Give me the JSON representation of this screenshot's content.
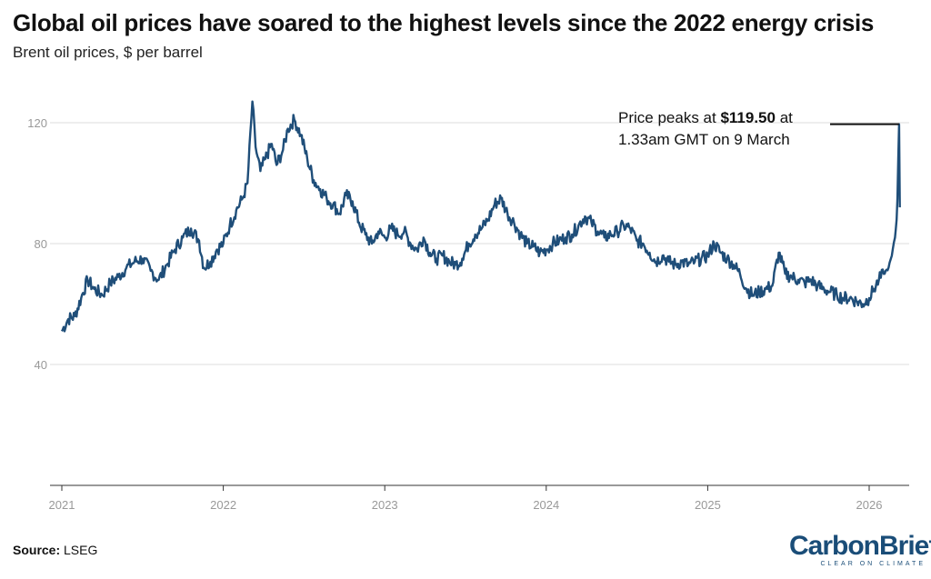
{
  "header": {
    "title": "Global oil prices have soared to the highest levels since the 2022 energy crisis",
    "subtitle": "Brent oil prices, $ per barrel"
  },
  "footer": {
    "source_label": "Source:",
    "source_value": "LSEG",
    "logo_text_1": "Carbon",
    "logo_text_2": "Brief",
    "logo_tagline": "CLEAR ON CLIMATE"
  },
  "annotation": {
    "line1_prefix": "Price peaks at ",
    "line1_value": "$119.50",
    "line1_suffix": " at",
    "line2": "1.33am GMT on 9 March"
  },
  "colors": {
    "line": "#1f4e79",
    "grid": "#dcdcdc",
    "axis_text": "#999999",
    "brand": "#1a4d78"
  },
  "chart_data": {
    "type": "line",
    "title": "Global oil prices have soared to the highest levels since the 2022 energy crisis",
    "subtitle": "Brent oil prices, $ per barrel",
    "xlabel": "",
    "ylabel": "",
    "ylim": [
      0,
      130
    ],
    "yticks": [
      40,
      80,
      120
    ],
    "ytick_labels": [
      "40",
      "80",
      "120"
    ],
    "xticks": [
      2021,
      2022,
      2023,
      2024,
      2025,
      2026
    ],
    "xtick_labels": [
      "2021",
      "2022",
      "2023",
      "2024",
      "2025",
      "2026"
    ],
    "grid": "horizontal",
    "series": [
      {
        "x": [
          2021.0,
          2021.04,
          2021.08,
          2021.12,
          2021.16,
          2021.2,
          2021.25,
          2021.3,
          2021.35,
          2021.4,
          2021.45,
          2021.5,
          2021.55,
          2021.6,
          2021.65,
          2021.7,
          2021.75,
          2021.8,
          2021.85,
          2021.88,
          2021.92,
          2021.96,
          2022.0,
          2022.04,
          2022.08,
          2022.12,
          2022.15,
          2022.18,
          2022.2,
          2022.23,
          2022.26,
          2022.3,
          2022.33,
          2022.37,
          2022.4,
          2022.44,
          2022.48,
          2022.52,
          2022.56,
          2022.6,
          2022.64,
          2022.68,
          2022.72,
          2022.76,
          2022.8,
          2022.84,
          2022.88,
          2022.92,
          2022.96,
          2023.0,
          2023.04,
          2023.08,
          2023.12,
          2023.16,
          2023.2,
          2023.24,
          2023.28,
          2023.32,
          2023.36,
          2023.4,
          2023.44,
          2023.48,
          2023.52,
          2023.56,
          2023.6,
          2023.64,
          2023.68,
          2023.72,
          2023.76,
          2023.8,
          2023.84,
          2023.88,
          2023.92,
          2023.96,
          2024.0,
          2024.04,
          2024.08,
          2024.12,
          2024.16,
          2024.2,
          2024.24,
          2024.28,
          2024.32,
          2024.36,
          2024.4,
          2024.44,
          2024.48,
          2024.52,
          2024.56,
          2024.6,
          2024.64,
          2024.68,
          2024.72,
          2024.76,
          2024.8,
          2024.84,
          2024.88,
          2024.92,
          2024.96,
          2025.0,
          2025.04,
          2025.08,
          2025.12,
          2025.16,
          2025.2,
          2025.24,
          2025.28,
          2025.32,
          2025.36,
          2025.4,
          2025.44,
          2025.48,
          2025.52,
          2025.56,
          2025.6,
          2025.64,
          2025.68,
          2025.72,
          2025.76,
          2025.8,
          2025.84,
          2025.88,
          2025.92,
          2025.96,
          2026.0,
          2026.03,
          2026.06,
          2026.09,
          2026.12,
          2026.14,
          2026.16,
          2026.17,
          2026.175,
          2026.18,
          2026.185,
          2026.19
        ],
        "y": [
          51,
          55,
          56,
          62,
          68,
          65,
          63,
          67,
          69,
          72,
          74,
          75,
          71,
          68,
          73,
          78,
          82,
          85,
          81,
          72,
          74,
          78,
          80,
          86,
          91,
          95,
          100,
          127,
          112,
          104,
          108,
          113,
          106,
          111,
          118,
          121,
          116,
          108,
          101,
          98,
          95,
          93,
          90,
          96,
          94,
          87,
          83,
          80,
          84,
          82,
          85,
          83,
          84,
          80,
          78,
          82,
          77,
          75,
          76,
          74,
          73,
          75,
          80,
          83,
          85,
          88,
          93,
          95,
          90,
          87,
          83,
          80,
          79,
          77,
          78,
          80,
          81,
          82,
          83,
          86,
          89,
          87,
          84,
          82,
          83,
          84,
          86,
          85,
          81,
          80,
          77,
          74,
          76,
          74,
          73,
          74,
          73,
          74,
          75,
          76,
          80,
          77,
          75,
          73,
          70,
          65,
          63,
          64,
          65,
          66,
          77,
          70,
          69,
          68,
          67,
          68,
          66,
          65,
          64,
          63,
          62,
          62,
          61,
          60,
          62,
          65,
          68,
          70,
          72,
          76,
          82,
          88,
          95,
          108,
          119.5,
          92
        ]
      }
    ]
  }
}
